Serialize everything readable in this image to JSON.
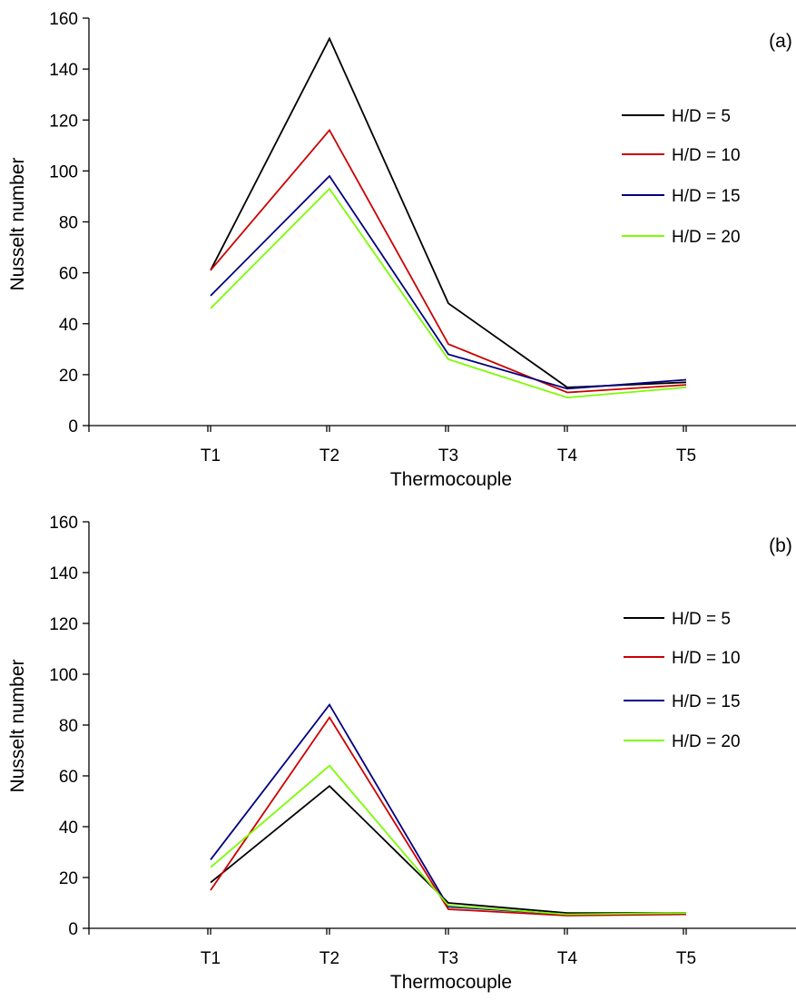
{
  "chart_data": [
    {
      "type": "line",
      "panel_label": "(a)",
      "xlabel": "Thermocouple",
      "ylabel": "Nusselt number",
      "categories": [
        "T1",
        "T2",
        "T3",
        "T4",
        "T5"
      ],
      "ylim": [
        0,
        160
      ],
      "yticks": [
        0,
        20,
        40,
        60,
        80,
        100,
        120,
        140,
        160
      ],
      "grid": false,
      "legend_position": "right",
      "series": [
        {
          "name": "H/D = 5",
          "color": "#000000",
          "values": [
            61,
            152,
            48,
            15,
            17
          ]
        },
        {
          "name": "H/D = 10",
          "color": "#cc0000",
          "values": [
            61,
            116,
            32,
            13,
            16
          ]
        },
        {
          "name": "H/D = 15",
          "color": "#000080",
          "values": [
            51,
            98,
            28,
            14.5,
            18
          ]
        },
        {
          "name": "H/D = 20",
          "color": "#7cfc00",
          "values": [
            46,
            93,
            26,
            11,
            15
          ]
        }
      ]
    },
    {
      "type": "line",
      "panel_label": "(b)",
      "xlabel": "Thermocouple",
      "ylabel": "Nusselt number",
      "categories": [
        "T1",
        "T2",
        "T3",
        "T4",
        "T5"
      ],
      "ylim": [
        0,
        160
      ],
      "yticks": [
        0,
        20,
        40,
        60,
        80,
        100,
        120,
        140,
        160
      ],
      "grid": false,
      "legend_position": "right",
      "series": [
        {
          "name": "H/D = 5",
          "color": "#000000",
          "values": [
            18,
            56,
            10,
            6,
            6
          ]
        },
        {
          "name": "H/D = 10",
          "color": "#cc0000",
          "values": [
            15,
            83,
            7.5,
            5,
            5.5
          ]
        },
        {
          "name": "H/D = 15",
          "color": "#000080",
          "values": [
            27,
            88,
            8.5,
            5.5,
            6
          ]
        },
        {
          "name": "H/D = 20",
          "color": "#7cfc00",
          "values": [
            24,
            64,
            9,
            5.5,
            6
          ]
        }
      ]
    }
  ]
}
